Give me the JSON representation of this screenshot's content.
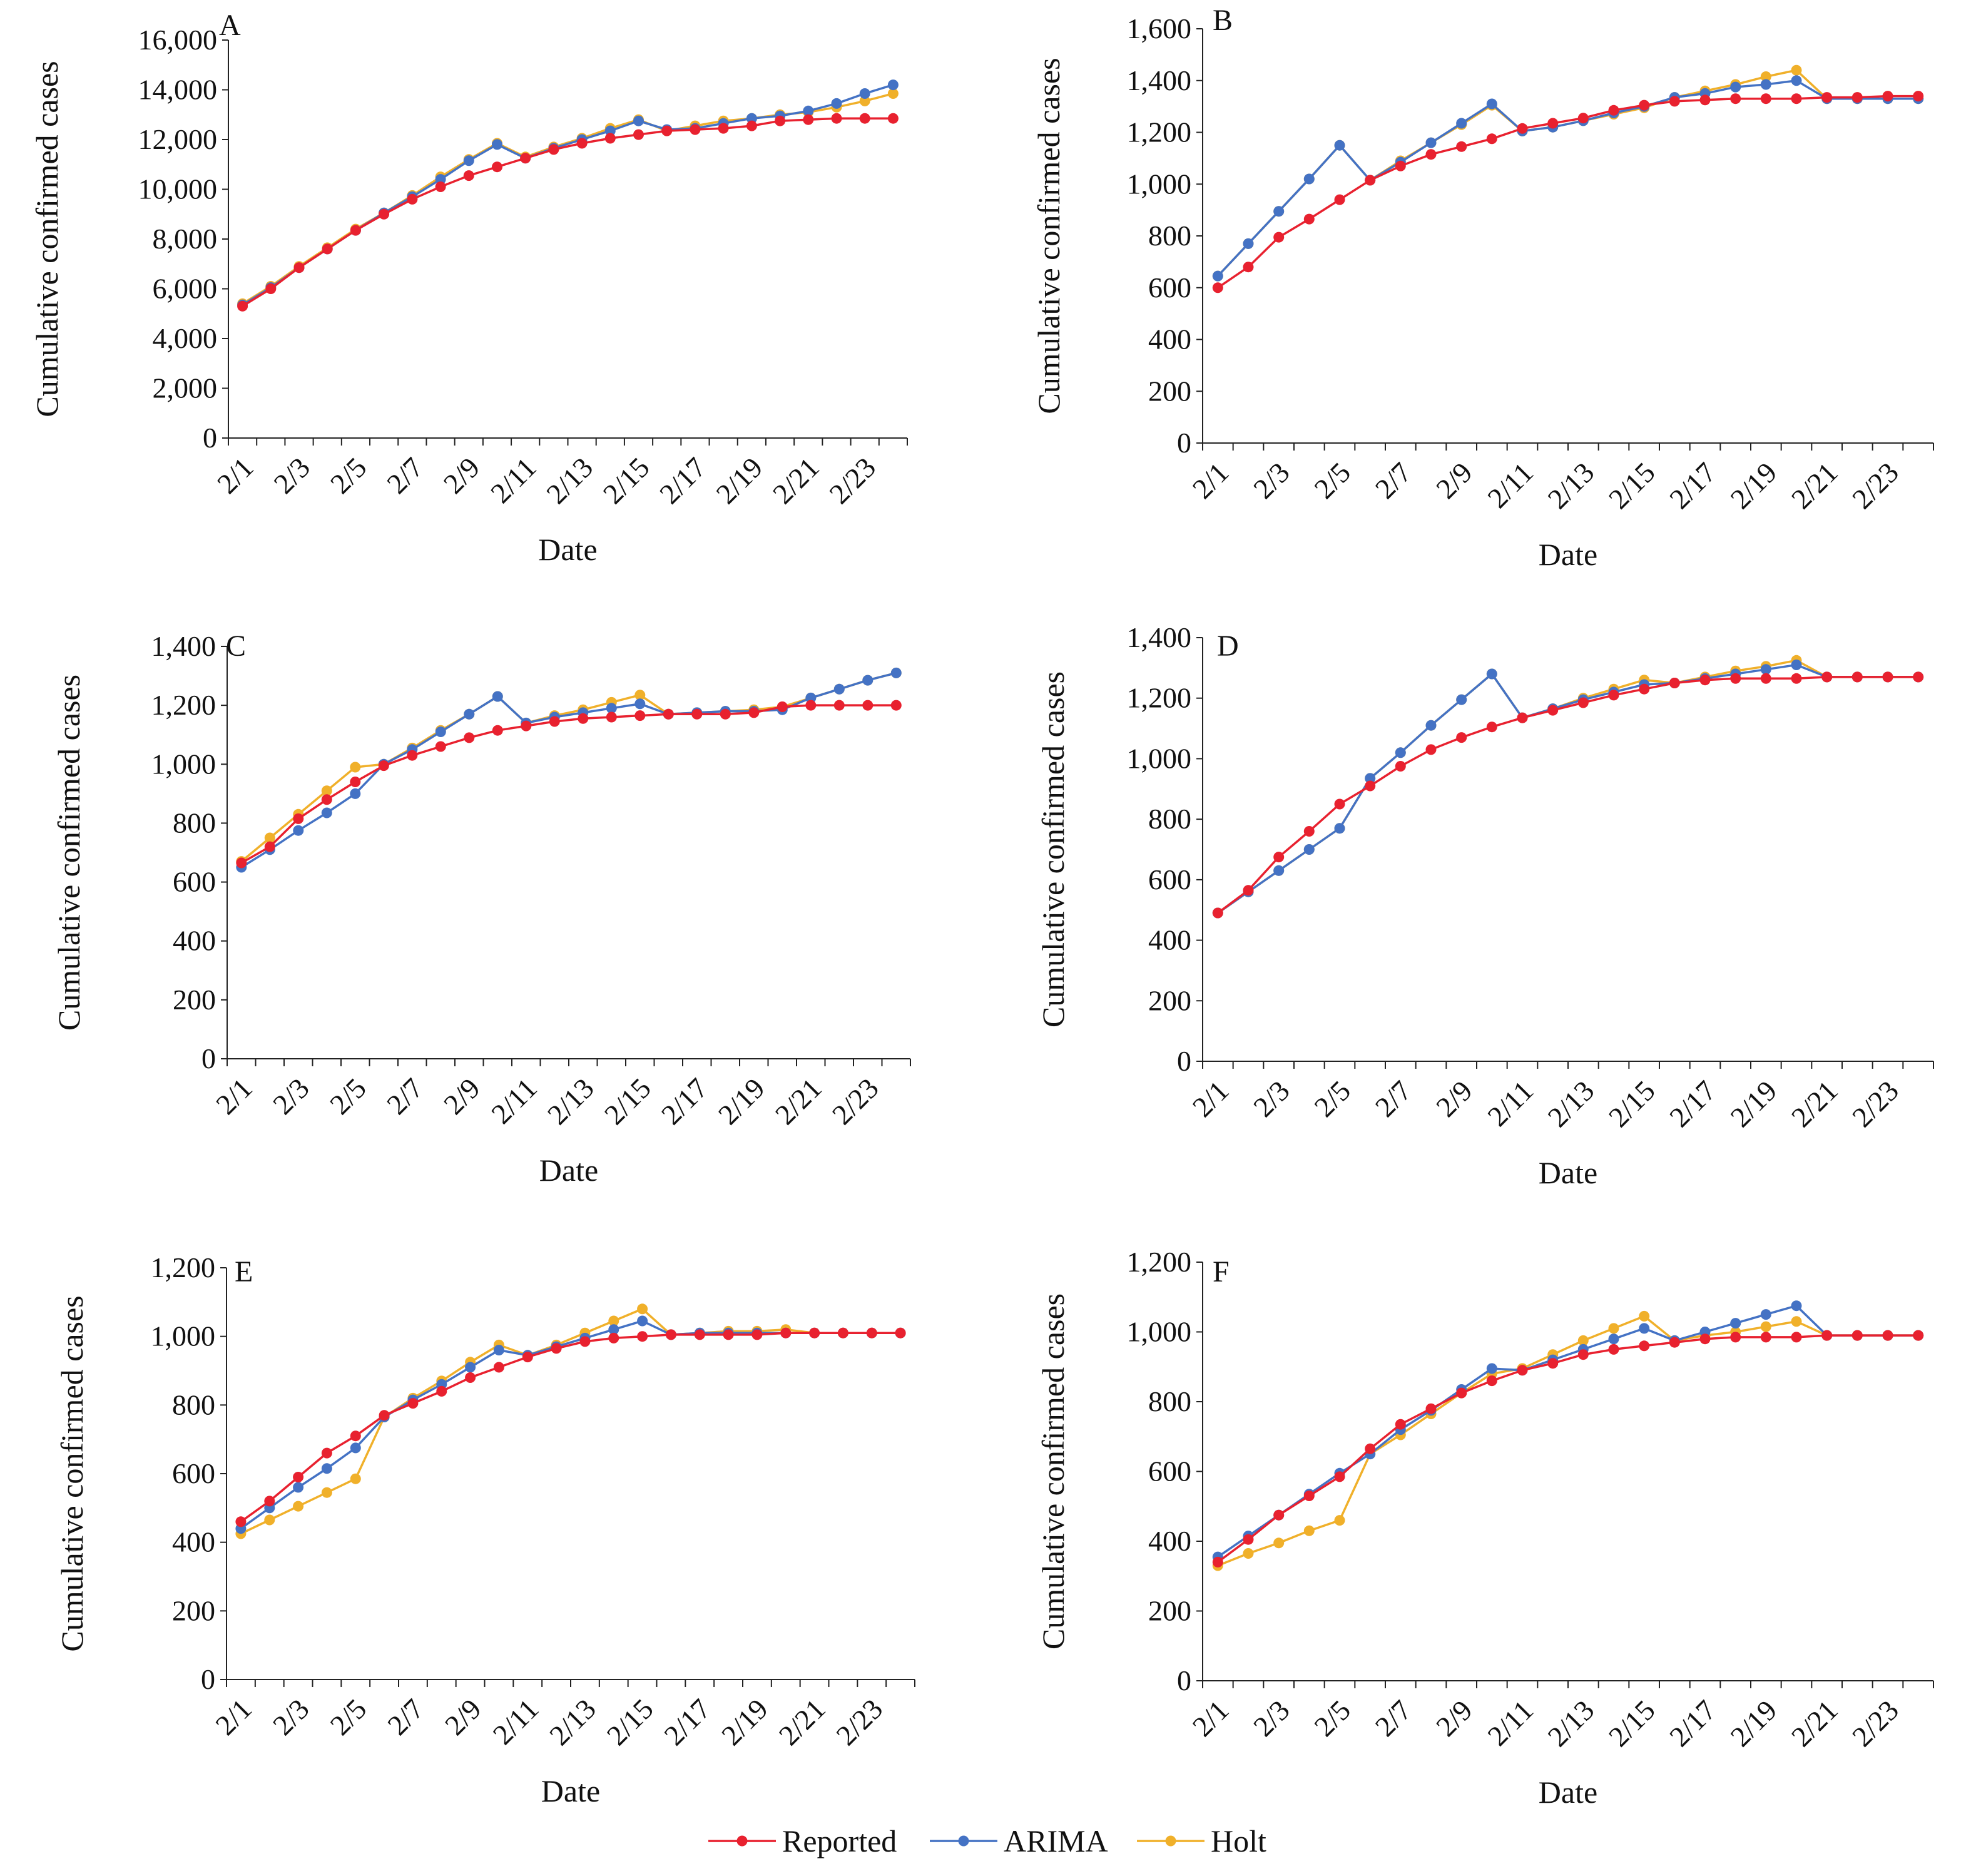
{
  "legend": [
    {
      "name": "Reported",
      "color": "#e8212f"
    },
    {
      "name": "ARIMA",
      "color": "#4472c4"
    },
    {
      "name": "Holt",
      "color": "#f0b02a"
    }
  ],
  "chart_data": [
    {
      "type": "line",
      "panel": "A",
      "xlabel": "Date",
      "ylabel": "Cumulative confirmed cases",
      "x": [
        "2/1",
        "2/2",
        "2/3",
        "2/4",
        "2/5",
        "2/6",
        "2/7",
        "2/8",
        "2/9",
        "2/10",
        "2/11",
        "2/12",
        "2/13",
        "2/14",
        "2/15",
        "2/16",
        "2/17",
        "2/18",
        "2/19",
        "2/20",
        "2/21",
        "2/22",
        "2/23",
        "2/24"
      ],
      "x_tick_labels": [
        "2/1",
        "2/3",
        "2/5",
        "2/7",
        "2/9",
        "2/11",
        "2/13",
        "2/15",
        "2/17",
        "2/19",
        "2/21",
        "2/23"
      ],
      "ylim": [
        0,
        16000
      ],
      "y_tick_labels": [
        "0",
        "2,000",
        "4,000",
        "6,000",
        "8,000",
        "10,000",
        "12,000",
        "14,000",
        "16,000"
      ],
      "series": [
        {
          "name": "Reported",
          "values": [
            5300,
            6000,
            6850,
            7600,
            8350,
            9000,
            9600,
            10100,
            10550,
            10900,
            11250,
            11600,
            11850,
            12050,
            12200,
            12350,
            12400,
            12450,
            12550,
            12750,
            12800,
            12850,
            12850,
            12850
          ]
        },
        {
          "name": "ARIMA",
          "values": [
            5350,
            6050,
            6850,
            7600,
            8350,
            9050,
            9700,
            10400,
            11150,
            11800,
            11250,
            11650,
            12000,
            12350,
            12750,
            12400,
            12450,
            12650,
            12850,
            12950,
            13150,
            13450,
            13850,
            14200
          ]
        },
        {
          "name": "Holt",
          "values": [
            5400,
            6100,
            6900,
            7650,
            8400,
            9050,
            9750,
            10500,
            11200,
            11850,
            11300,
            11700,
            12050,
            12450,
            12800,
            12350,
            12550,
            12750,
            12850,
            13000,
            13100,
            13300,
            13550,
            13850
          ]
        }
      ]
    },
    {
      "type": "line",
      "panel": "B",
      "xlabel": "Date",
      "ylabel": "Cumulative confirmed cases",
      "x": [
        "2/1",
        "2/2",
        "2/3",
        "2/4",
        "2/5",
        "2/6",
        "2/7",
        "2/8",
        "2/9",
        "2/10",
        "2/11",
        "2/12",
        "2/13",
        "2/14",
        "2/15",
        "2/16",
        "2/17",
        "2/18",
        "2/19",
        "2/20",
        "2/21",
        "2/22",
        "2/23",
        "2/24"
      ],
      "x_tick_labels": [
        "2/1",
        "2/3",
        "2/5",
        "2/7",
        "2/9",
        "2/11",
        "2/13",
        "2/15",
        "2/17",
        "2/19",
        "2/21",
        "2/23"
      ],
      "ylim": [
        0,
        1600
      ],
      "y_tick_labels": [
        "0",
        "200",
        "400",
        "600",
        "800",
        "1,000",
        "1,200",
        "1,400",
        "1,600"
      ],
      "series": [
        {
          "name": "Reported",
          "values": [
            600,
            680,
            795,
            865,
            940,
            1015,
            1070,
            1115,
            1145,
            1175,
            1215,
            1235,
            1255,
            1285,
            1305,
            1320,
            1325,
            1330,
            1330,
            1330,
            1335,
            1335,
            1340,
            1340
          ]
        },
        {
          "name": "ARIMA",
          "values": [
            645,
            770,
            895,
            1020,
            1150,
            1015,
            1085,
            1160,
            1235,
            1310,
            1205,
            1220,
            1245,
            1275,
            1300,
            1335,
            1350,
            1375,
            1385,
            1400,
            1330,
            1330,
            1330,
            1330
          ]
        },
        {
          "name": "Holt",
          "values": [
            645,
            770,
            895,
            1020,
            1150,
            1015,
            1090,
            1160,
            1230,
            1305,
            1205,
            1220,
            1245,
            1270,
            1295,
            1335,
            1360,
            1385,
            1415,
            1440,
            1330,
            1330,
            1330,
            1330
          ]
        }
      ]
    },
    {
      "type": "line",
      "panel": "C",
      "xlabel": "Date",
      "ylabel": "Cumulative confirmed cases",
      "x": [
        "2/1",
        "2/2",
        "2/3",
        "2/4",
        "2/5",
        "2/6",
        "2/7",
        "2/8",
        "2/9",
        "2/10",
        "2/11",
        "2/12",
        "2/13",
        "2/14",
        "2/15",
        "2/16",
        "2/17",
        "2/18",
        "2/19",
        "2/20",
        "2/21",
        "2/22",
        "2/23",
        "2/24"
      ],
      "x_tick_labels": [
        "2/1",
        "2/3",
        "2/5",
        "2/7",
        "2/9",
        "2/11",
        "2/13",
        "2/15",
        "2/17",
        "2/19",
        "2/21",
        "2/23"
      ],
      "ylim": [
        0,
        1400
      ],
      "y_tick_labels": [
        "0",
        "200",
        "400",
        "600",
        "800",
        "1,000",
        "1,200",
        "1,400"
      ],
      "series": [
        {
          "name": "Reported",
          "values": [
            665,
            720,
            815,
            880,
            940,
            995,
            1030,
            1060,
            1090,
            1115,
            1130,
            1145,
            1155,
            1160,
            1165,
            1170,
            1170,
            1170,
            1175,
            1195,
            1200,
            1200,
            1200,
            1200
          ]
        },
        {
          "name": "ARIMA",
          "values": [
            650,
            710,
            775,
            835,
            900,
            1000,
            1050,
            1110,
            1170,
            1230,
            1140,
            1160,
            1175,
            1190,
            1205,
            1170,
            1175,
            1180,
            1180,
            1185,
            1225,
            1255,
            1285,
            1310
          ]
        },
        {
          "name": "Holt",
          "values": [
            670,
            750,
            830,
            910,
            990,
            1000,
            1055,
            1115,
            1170,
            1230,
            1140,
            1165,
            1185,
            1210,
            1235,
            1170,
            1175,
            1180,
            1185,
            1195,
            1225,
            1255,
            1285,
            1310
          ]
        }
      ]
    },
    {
      "type": "line",
      "panel": "D",
      "xlabel": "Date",
      "ylabel": "Cumulative confirmed cases",
      "x": [
        "2/1",
        "2/2",
        "2/3",
        "2/4",
        "2/5",
        "2/6",
        "2/7",
        "2/8",
        "2/9",
        "2/10",
        "2/11",
        "2/12",
        "2/13",
        "2/14",
        "2/15",
        "2/16",
        "2/17",
        "2/18",
        "2/19",
        "2/20",
        "2/21",
        "2/22",
        "2/23",
        "2/24"
      ],
      "x_tick_labels": [
        "2/1",
        "2/3",
        "2/5",
        "2/7",
        "2/9",
        "2/11",
        "2/13",
        "2/15",
        "2/17",
        "2/19",
        "2/21",
        "2/23"
      ],
      "ylim": [
        0,
        1400
      ],
      "y_tick_labels": [
        "0",
        "200",
        "400",
        "600",
        "800",
        "1,000",
        "1,200",
        "1,400"
      ],
      "series": [
        {
          "name": "Reported",
          "values": [
            490,
            565,
            675,
            760,
            850,
            910,
            975,
            1030,
            1070,
            1105,
            1135,
            1160,
            1185,
            1210,
            1230,
            1250,
            1260,
            1265,
            1265,
            1265,
            1270,
            1270,
            1270,
            1270
          ]
        },
        {
          "name": "ARIMA",
          "values": [
            490,
            560,
            630,
            700,
            770,
            935,
            1020,
            1110,
            1195,
            1280,
            1135,
            1165,
            1195,
            1220,
            1245,
            1250,
            1265,
            1280,
            1295,
            1310,
            1270,
            1270,
            1270,
            1270
          ]
        },
        {
          "name": "Holt",
          "values": [
            490,
            560,
            630,
            700,
            770,
            935,
            1020,
            1110,
            1195,
            1280,
            1135,
            1165,
            1200,
            1230,
            1260,
            1250,
            1270,
            1290,
            1305,
            1325,
            1270,
            1270,
            1270,
            1270
          ]
        }
      ]
    },
    {
      "type": "line",
      "panel": "E",
      "xlabel": "Date",
      "ylabel": "Cumulative confirmed cases",
      "x": [
        "2/1",
        "2/2",
        "2/3",
        "2/4",
        "2/5",
        "2/6",
        "2/7",
        "2/8",
        "2/9",
        "2/10",
        "2/11",
        "2/12",
        "2/13",
        "2/14",
        "2/15",
        "2/16",
        "2/17",
        "2/18",
        "2/19",
        "2/20",
        "2/21",
        "2/22",
        "2/23",
        "2/24"
      ],
      "x_tick_labels": [
        "2/1",
        "2/3",
        "2/5",
        "2/7",
        "2/9",
        "2/11",
        "2/13",
        "2/15",
        "2/17",
        "2/19",
        "2/21",
        "2/23"
      ],
      "ylim": [
        0,
        1200
      ],
      "y_tick_labels": [
        "0",
        "200",
        "400",
        "600",
        "800",
        "1,000",
        "1,200"
      ],
      "series": [
        {
          "name": "Reported",
          "values": [
            460,
            520,
            590,
            660,
            710,
            770,
            805,
            840,
            880,
            910,
            940,
            965,
            985,
            995,
            1000,
            1005,
            1005,
            1005,
            1005,
            1010,
            1010,
            1010,
            1010,
            1010
          ]
        },
        {
          "name": "ARIMA",
          "values": [
            440,
            500,
            560,
            615,
            675,
            765,
            815,
            860,
            910,
            960,
            945,
            970,
            995,
            1020,
            1045,
            1005,
            1010,
            1010,
            1010,
            1010,
            1010,
            1010,
            1010,
            1010
          ]
        },
        {
          "name": "Holt",
          "values": [
            425,
            465,
            505,
            545,
            585,
            765,
            820,
            870,
            925,
            975,
            945,
            975,
            1010,
            1045,
            1080,
            1005,
            1010,
            1015,
            1015,
            1020,
            1010,
            1010,
            1010,
            1010
          ]
        }
      ]
    },
    {
      "type": "line",
      "panel": "F",
      "xlabel": "Date",
      "ylabel": "Cumulative confirmed cases",
      "x": [
        "2/1",
        "2/2",
        "2/3",
        "2/4",
        "2/5",
        "2/6",
        "2/7",
        "2/8",
        "2/9",
        "2/10",
        "2/11",
        "2/12",
        "2/13",
        "2/14",
        "2/15",
        "2/16",
        "2/17",
        "2/18",
        "2/19",
        "2/20",
        "2/21",
        "2/22",
        "2/23",
        "2/24"
      ],
      "x_tick_labels": [
        "2/1",
        "2/3",
        "2/5",
        "2/7",
        "2/9",
        "2/11",
        "2/13",
        "2/15",
        "2/17",
        "2/19",
        "2/21",
        "2/23"
      ],
      "ylim": [
        0,
        1200
      ],
      "y_tick_labels": [
        "0",
        "200",
        "400",
        "600",
        "800",
        "1,000",
        "1,200"
      ],
      "series": [
        {
          "name": "Reported",
          "values": [
            340,
            405,
            475,
            530,
            585,
            665,
            735,
            780,
            825,
            860,
            890,
            910,
            935,
            950,
            960,
            970,
            980,
            985,
            985,
            985,
            990,
            990,
            990,
            990
          ]
        },
        {
          "name": "ARIMA",
          "values": [
            355,
            415,
            475,
            535,
            595,
            650,
            720,
            775,
            835,
            895,
            890,
            920,
            950,
            980,
            1010,
            975,
            1000,
            1025,
            1050,
            1075,
            990,
            990,
            990,
            990
          ]
        },
        {
          "name": "Holt",
          "values": [
            330,
            365,
            395,
            430,
            460,
            650,
            705,
            765,
            825,
            880,
            895,
            935,
            975,
            1010,
            1045,
            975,
            990,
            1000,
            1015,
            1030,
            990,
            990,
            990,
            990
          ]
        }
      ]
    }
  ]
}
